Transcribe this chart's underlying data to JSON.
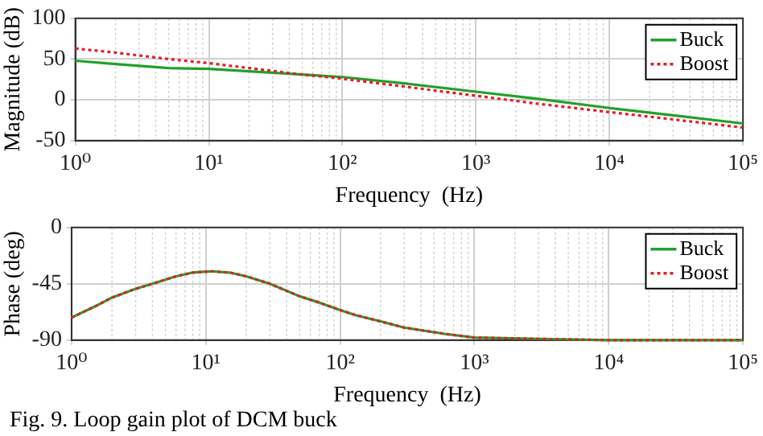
{
  "chart_data": [
    {
      "type": "line",
      "xlabel": "Frequency  (Hz)",
      "ylabel": "Magnitude (dB)",
      "log": "x",
      "xlim": [
        1,
        100000
      ],
      "xticks": [
        {
          "value": 1,
          "label": "10⁰"
        },
        {
          "value": 10,
          "label": "10¹"
        },
        {
          "value": 100,
          "label": "10²"
        },
        {
          "value": 1000,
          "label": "10³"
        },
        {
          "value": 10000,
          "label": "10⁴"
        },
        {
          "value": 100000,
          "label": "10⁵"
        }
      ],
      "ylim": [
        -50,
        100
      ],
      "yticks": [
        -50,
        0,
        50,
        100
      ],
      "grid": true,
      "legend": "top right",
      "series": [
        {
          "name": "Buck",
          "color": "#22a02a",
          "line_style": "solid",
          "x": [
            1,
            2,
            5,
            10,
            20,
            50,
            100,
            300,
            1000,
            3000,
            10000,
            30000,
            100000
          ],
          "values": [
            48,
            44,
            39,
            38,
            35,
            31,
            28,
            20,
            10,
            1,
            -10,
            -19,
            -29
          ]
        },
        {
          "name": "Boost",
          "color": "#e0202a",
          "line_style": "dotted",
          "x": [
            1,
            2,
            5,
            10,
            20,
            50,
            100,
            300,
            1000,
            3000,
            10000,
            30000,
            100000
          ],
          "values": [
            63,
            58,
            50,
            45,
            39,
            31,
            26,
            16,
            5,
            -5,
            -15,
            -24,
            -34
          ]
        }
      ]
    },
    {
      "type": "line",
      "xlabel": "Frequency  (Hz)",
      "ylabel": "Phase (deg)",
      "log": "x",
      "xlim": [
        1,
        100000
      ],
      "xticks": [
        {
          "value": 1,
          "label": "10⁰"
        },
        {
          "value": 10,
          "label": "10¹"
        },
        {
          "value": 100,
          "label": "10²"
        },
        {
          "value": 1000,
          "label": "10³"
        },
        {
          "value": 10000,
          "label": "10⁴"
        },
        {
          "value": 100000,
          "label": "10⁵"
        }
      ],
      "ylim": [
        -90,
        0
      ],
      "yticks": [
        -90,
        -45,
        0
      ],
      "grid": true,
      "legend": "top right",
      "annotations": [
        "Fig. 9.   Loop gain plot of DCM buck"
      ],
      "series": [
        {
          "name": "Buck",
          "color": "#22a02a",
          "line_style": "solid",
          "x": [
            1,
            1.5,
            2,
            3,
            4,
            6,
            8,
            11,
            15,
            20,
            30,
            50,
            70,
            100,
            130,
            200,
            300,
            600,
            1000,
            3000,
            10000,
            100000
          ],
          "values": [
            -72,
            -63,
            -56,
            -49,
            -45,
            -39,
            -36,
            -35,
            -36,
            -39,
            -45,
            -55,
            -60,
            -66,
            -70,
            -75,
            -80,
            -85,
            -88,
            -89,
            -90,
            -90
          ]
        },
        {
          "name": "Boost",
          "color": "#e0202a",
          "line_style": "dotted",
          "x": [
            1,
            1.5,
            2,
            3,
            4,
            6,
            8,
            11,
            15,
            20,
            30,
            50,
            70,
            100,
            130,
            200,
            300,
            600,
            1000,
            3000,
            10000,
            100000
          ],
          "values": [
            -72,
            -63,
            -56,
            -49,
            -45,
            -39,
            -36,
            -35,
            -36,
            -39,
            -45,
            -55,
            -60,
            -66,
            -70,
            -75,
            -80,
            -85,
            -88,
            -89,
            -90,
            -90
          ]
        }
      ]
    }
  ]
}
